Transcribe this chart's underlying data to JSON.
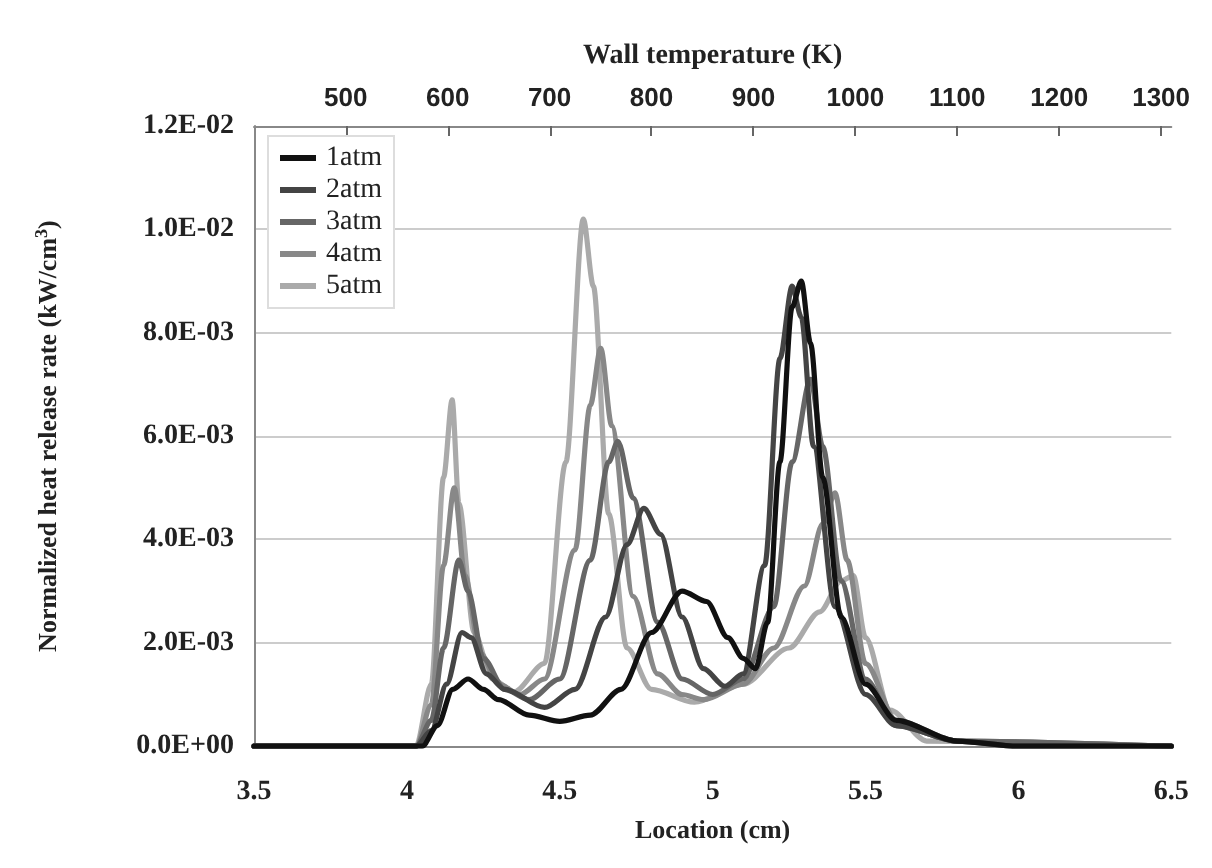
{
  "chart_data": {
    "type": "line",
    "xlabel": "Location (cm)",
    "ylabel": "Normalized heat release rate (kW/cm$^{3}$)",
    "x2label": "Wall temperature (K)",
    "xlim": [
      3.5,
      6.5
    ],
    "xticks": [
      3.5,
      4,
      4.5,
      5,
      5.5,
      6,
      6.5
    ],
    "x2lim": [
      410,
      1310
    ],
    "x2ticks": [
      500,
      600,
      700,
      800,
      900,
      1000,
      1100,
      1200,
      1300
    ],
    "ylim": [
      0,
      0.012
    ],
    "yticks": [
      {
        "value": 0,
        "label": "0.0E+00"
      },
      {
        "value": 0.002,
        "label": "2.0E-03"
      },
      {
        "value": 0.004,
        "label": "4.0E-03"
      },
      {
        "value": 0.006,
        "label": "6.0E-03"
      },
      {
        "value": 0.008,
        "label": "8.0E-03"
      },
      {
        "value": 0.01,
        "label": "1.0E-02"
      },
      {
        "value": 0.012,
        "label": "1.2E-02"
      }
    ],
    "grid": "y",
    "legend": "top left",
    "marker": "none",
    "line_style": "solid",
    "series": [
      {
        "name": "1atm",
        "color": "#111111",
        "x": [
          3.5,
          4.0,
          4.05,
          4.1,
          4.15,
          4.2,
          4.25,
          4.3,
          4.4,
          4.5,
          4.6,
          4.7,
          4.8,
          4.9,
          4.98,
          5.05,
          5.1,
          5.14,
          5.18,
          5.22,
          5.26,
          5.29,
          5.32,
          5.36,
          5.42,
          5.5,
          5.6,
          5.8,
          6.0,
          6.5
        ],
        "values": [
          0,
          0,
          0,
          0.0004,
          0.0011,
          0.0013,
          0.0011,
          0.0009,
          0.0006,
          0.00048,
          0.0006,
          0.0011,
          0.0022,
          0.003,
          0.0028,
          0.0021,
          0.0017,
          0.0015,
          0.0024,
          0.0055,
          0.0085,
          0.009,
          0.0078,
          0.0052,
          0.0025,
          0.0012,
          0.0005,
          0.0001,
          0,
          0
        ]
      },
      {
        "name": "2atm",
        "color": "#444444",
        "x": [
          3.5,
          4.03,
          4.08,
          4.13,
          4.18,
          4.21,
          4.26,
          4.32,
          4.45,
          4.55,
          4.65,
          4.72,
          4.775,
          4.83,
          4.9,
          4.97,
          5.04,
          5.1,
          5.17,
          5.22,
          5.26,
          5.29,
          5.33,
          5.4,
          5.5,
          5.6,
          5.8,
          6.0,
          6.5
        ],
        "values": [
          0,
          0,
          0.0003,
          0.0012,
          0.0022,
          0.0021,
          0.0014,
          0.0011,
          0.00075,
          0.0011,
          0.0025,
          0.0039,
          0.0046,
          0.0041,
          0.0025,
          0.0015,
          0.00116,
          0.0014,
          0.0035,
          0.0075,
          0.0089,
          0.0083,
          0.0058,
          0.0027,
          0.001,
          0.0004,
          0.0001,
          0,
          0
        ]
      },
      {
        "name": "3atm",
        "color": "#666666",
        "x": [
          3.5,
          4.03,
          4.08,
          4.12,
          4.17,
          4.2,
          4.25,
          4.32,
          4.4,
          4.5,
          4.6,
          4.66,
          4.69,
          4.74,
          4.82,
          4.9,
          5.0,
          5.1,
          5.2,
          5.26,
          5.32,
          5.36,
          5.42,
          5.5,
          5.6,
          5.8,
          6.5
        ],
        "values": [
          0,
          0,
          0.0005,
          0.0019,
          0.0036,
          0.003,
          0.0017,
          0.0011,
          0.0009,
          0.0013,
          0.0036,
          0.0055,
          0.0059,
          0.0048,
          0.0024,
          0.0013,
          0.001,
          0.0013,
          0.0027,
          0.0055,
          0.0071,
          0.0058,
          0.0032,
          0.0013,
          0.0004,
          0.0001,
          0
        ]
      },
      {
        "name": "4atm",
        "color": "#888888",
        "x": [
          3.5,
          4.03,
          4.08,
          4.12,
          4.155,
          4.19,
          4.24,
          4.3,
          4.37,
          4.45,
          4.55,
          4.6,
          4.634,
          4.67,
          4.74,
          4.82,
          4.9,
          4.97,
          5.1,
          5.2,
          5.3,
          5.36,
          5.4,
          5.44,
          5.5,
          5.6,
          5.8,
          6.5
        ],
        "values": [
          0,
          0,
          0.0008,
          0.0035,
          0.005,
          0.0033,
          0.0018,
          0.0012,
          0.001,
          0.0013,
          0.0038,
          0.0066,
          0.0077,
          0.0062,
          0.0029,
          0.0014,
          0.001,
          0.0009,
          0.0012,
          0.0019,
          0.0031,
          0.0043,
          0.0049,
          0.0036,
          0.0016,
          0.0005,
          0.0001,
          0
        ]
      },
      {
        "name": "5atm",
        "color": "#aaaaaa",
        "x": [
          3.5,
          4.03,
          4.08,
          4.12,
          4.148,
          4.17,
          4.22,
          4.28,
          4.35,
          4.45,
          4.52,
          4.577,
          4.61,
          4.66,
          4.72,
          4.8,
          4.94,
          5.1,
          5.25,
          5.35,
          5.42,
          5.46,
          5.5,
          5.58,
          5.7,
          6.5
        ],
        "values": [
          0,
          0,
          0.0012,
          0.0052,
          0.0067,
          0.0047,
          0.0022,
          0.0013,
          0.00105,
          0.0016,
          0.0055,
          0.0102,
          0.0089,
          0.0045,
          0.0019,
          0.0011,
          0.00085,
          0.0012,
          0.0019,
          0.0026,
          0.0032,
          0.0033,
          0.0021,
          0.0007,
          0.0001,
          0
        ]
      }
    ]
  }
}
